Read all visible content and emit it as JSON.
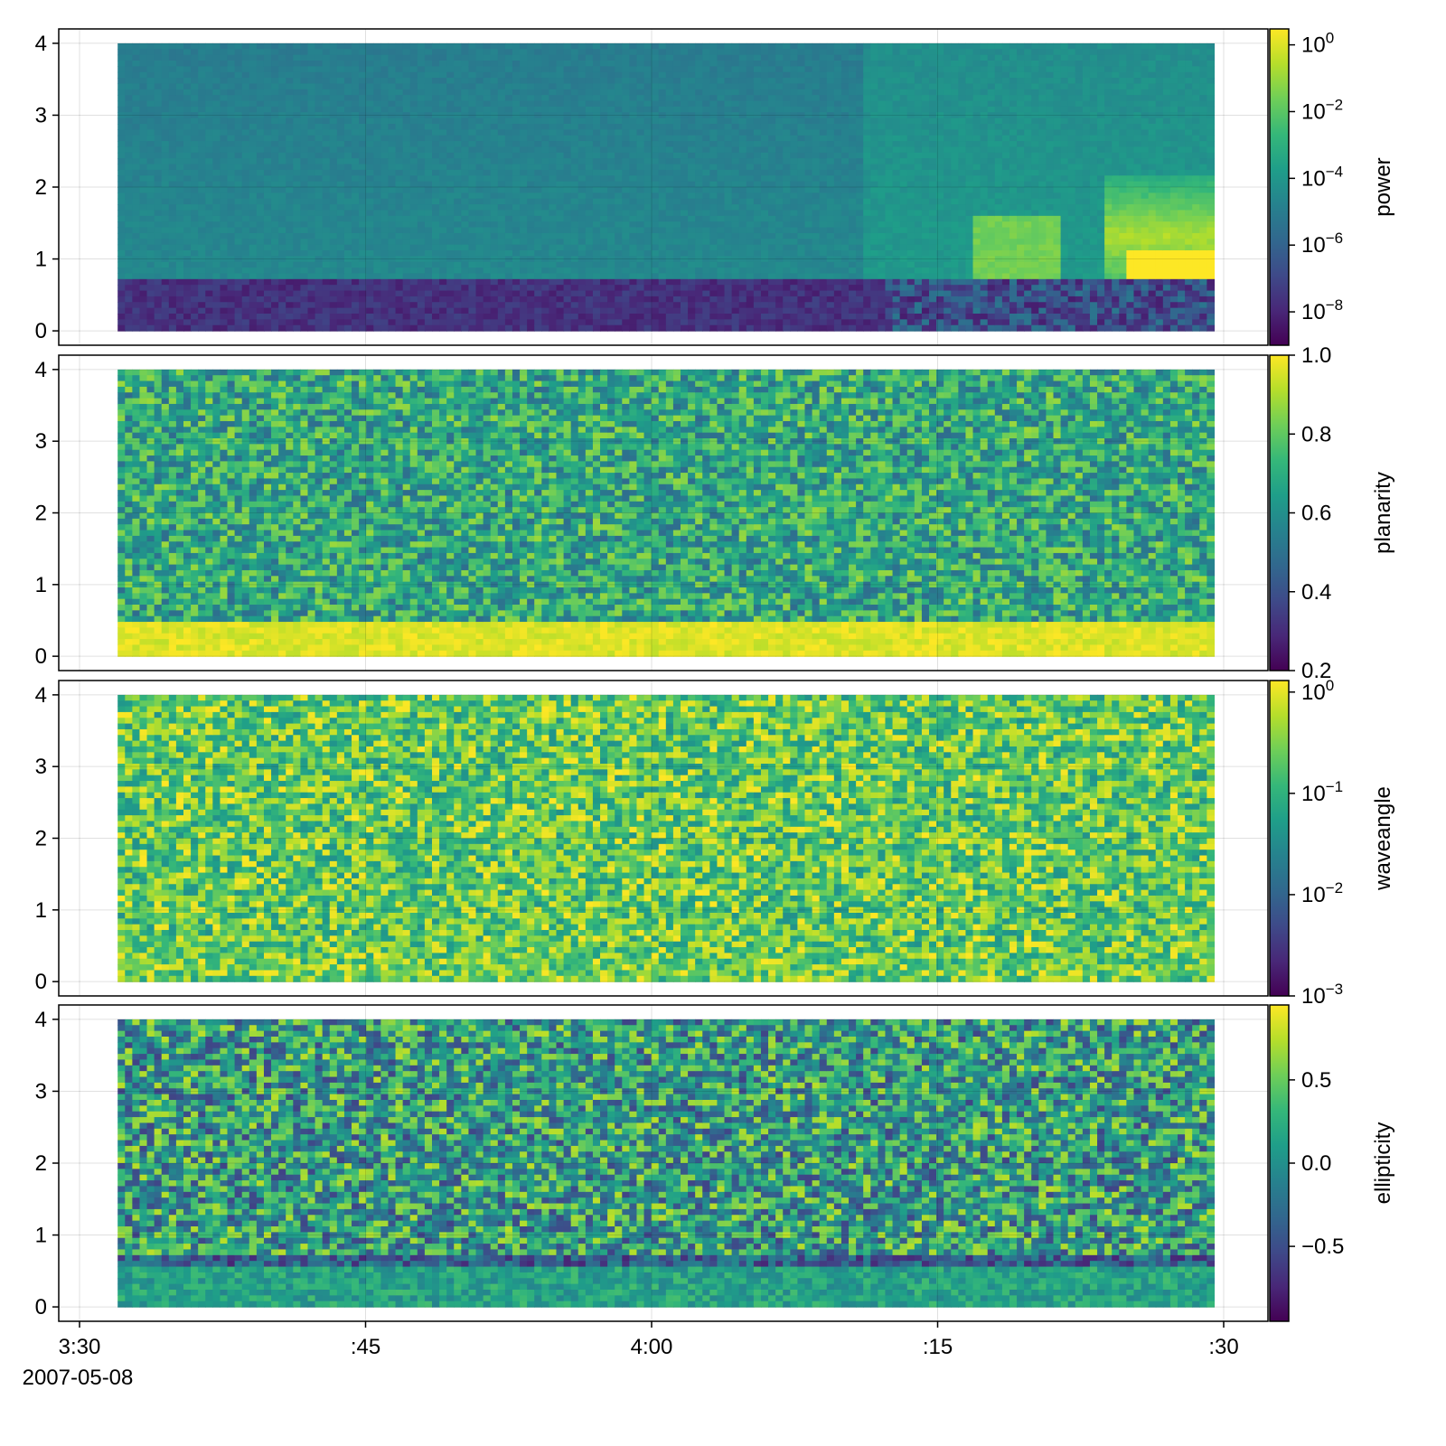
{
  "x_axis": {
    "ticks": [
      {
        "label": "3:30",
        "time": "03:30"
      },
      {
        "label": ":45",
        "time": "03:45"
      },
      {
        "label": "4:00",
        "time": "04:00"
      },
      {
        "label": ":15",
        "time": "04:15"
      },
      {
        "label": ":30",
        "time": "04:30"
      }
    ],
    "date_label": "2007-05-08",
    "range": [
      "03:28",
      "04:33"
    ],
    "data_range": [
      "03:32",
      "04:29.5"
    ]
  },
  "chart_data": [
    {
      "type": "heatmap",
      "colormap": "viridis",
      "y_range": [
        -0.2,
        4.2
      ],
      "y_data_range": [
        0,
        4
      ],
      "y_ticks": [
        "0",
        "1",
        "2",
        "3",
        "4"
      ],
      "grid": true,
      "colorbar": {
        "label": "power",
        "scale": "log",
        "range": [
          1e-09,
          3
        ],
        "ticks": [
          {
            "base": "10",
            "exp": "0",
            "value": 1
          },
          {
            "base": "10",
            "exp": "−2",
            "value": 0.01
          },
          {
            "base": "10",
            "exp": "−4",
            "value": 0.0001
          },
          {
            "base": "10",
            "exp": "−6",
            "value": 1e-06
          },
          {
            "base": "10",
            "exp": "−8",
            "value": 1e-08
          }
        ]
      },
      "features": [
        {
          "desc": "low-frequency band below ~0.7 Hz",
          "level": 0.05
        },
        {
          "desc": "background above band",
          "level": 0.45
        },
        {
          "desc": "bright emission near 1 Hz after 04:20",
          "level": 0.95
        }
      ]
    },
    {
      "type": "heatmap",
      "colormap": "viridis",
      "y_range": [
        -0.2,
        4.2
      ],
      "y_data_range": [
        0,
        4
      ],
      "y_ticks": [
        "0",
        "1",
        "2",
        "3",
        "4"
      ],
      "grid": true,
      "colorbar": {
        "label": "planarity",
        "scale": "linear",
        "range": [
          0.2,
          1.0
        ],
        "ticks": [
          {
            "label": "1.0",
            "value": 1.0
          },
          {
            "label": "0.8",
            "value": 0.8
          },
          {
            "label": "0.6",
            "value": 0.6
          },
          {
            "label": "0.4",
            "value": 0.4
          },
          {
            "label": "0.2",
            "value": 0.2
          }
        ]
      }
    },
    {
      "type": "heatmap",
      "colormap": "viridis",
      "y_range": [
        -0.2,
        4.2
      ],
      "y_data_range": [
        0,
        4
      ],
      "y_ticks": [
        "0",
        "1",
        "2",
        "3",
        "4"
      ],
      "grid": true,
      "colorbar": {
        "label": "waveangle",
        "scale": "log",
        "range": [
          0.001,
          1.3
        ],
        "ticks": [
          {
            "base": "10",
            "exp": "0",
            "value": 1
          },
          {
            "base": "10",
            "exp": "−1",
            "value": 0.1
          },
          {
            "base": "10",
            "exp": "−2",
            "value": 0.01
          },
          {
            "base": "10",
            "exp": "−3",
            "value": 0.001
          }
        ]
      }
    },
    {
      "type": "heatmap",
      "colormap": "viridis",
      "y_range": [
        -0.2,
        4.2
      ],
      "y_data_range": [
        0,
        4
      ],
      "y_ticks": [
        "0",
        "1",
        "2",
        "3",
        "4"
      ],
      "grid": true,
      "colorbar": {
        "label": "ellipticity",
        "scale": "linear",
        "range": [
          -0.95,
          0.95
        ],
        "ticks": [
          {
            "label": "0.5",
            "value": 0.5
          },
          {
            "label": "0.0",
            "value": 0.0
          },
          {
            "label": "−0.5",
            "value": -0.5
          }
        ]
      }
    }
  ]
}
